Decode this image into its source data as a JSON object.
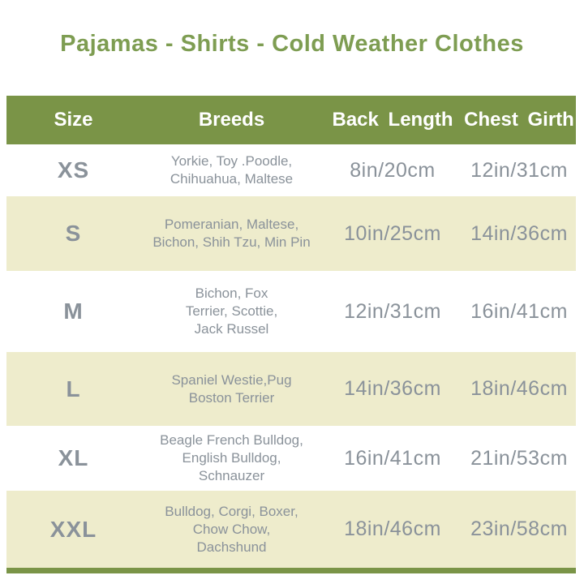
{
  "page": {
    "title": "Pajamas - Shirts - Cold Weather Clothes"
  },
  "colors": {
    "title_green": "#7e9d52",
    "header_green": "#7a9447",
    "row_cream": "#eeeccc",
    "row_white": "#ffffff",
    "text_gray": "#8a929a"
  },
  "chart_data": {
    "type": "table",
    "title": "Pajamas - Shirts - Cold Weather Clothes",
    "columns": [
      "Size",
      "Breeds",
      "Back Length",
      "Chest Girth"
    ],
    "rows": [
      {
        "size": "XS",
        "breeds": [
          "Yorkie, Toy .Poodle,",
          "Chihuahua, Maltese"
        ],
        "back_length": "8in/20cm",
        "chest_girth": "12in/31cm"
      },
      {
        "size": "S",
        "breeds": [
          "Pomeranian, Maltese,",
          "Bichon, Shih Tzu, Min Pin"
        ],
        "back_length": "10in/25cm",
        "chest_girth": "14in/36cm"
      },
      {
        "size": "M",
        "breeds": [
          "Bichon, Fox",
          "Terrier, Scottie,",
          "Jack Russel"
        ],
        "back_length": "12in/31cm",
        "chest_girth": "16in/41cm"
      },
      {
        "size": "L",
        "breeds": [
          "Spaniel Westie,Pug",
          "Boston Terrier"
        ],
        "back_length": "14in/36cm",
        "chest_girth": "18in/46cm"
      },
      {
        "size": "XL",
        "breeds": [
          "Beagle French Bulldog,",
          "English Bulldog,",
          "Schnauzer"
        ],
        "back_length": "16in/41cm",
        "chest_girth": "21in/53cm"
      },
      {
        "size": "XXL",
        "breeds": [
          "Bulldog, Corgi, Boxer,",
          "Chow Chow,",
          "Dachshund"
        ],
        "back_length": "18in/46cm",
        "chest_girth": "23in/58cm"
      }
    ]
  }
}
